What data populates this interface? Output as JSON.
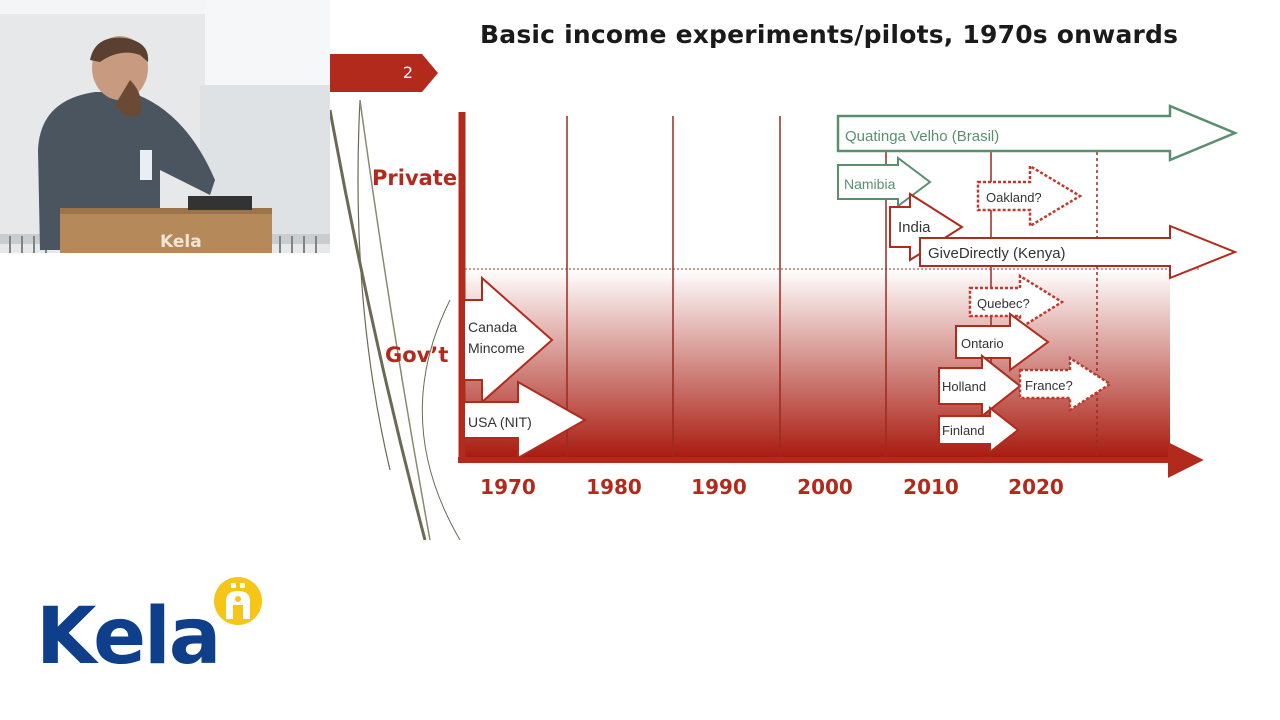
{
  "slide": {
    "title": "Basic income experiments/pilots, 1970s onwards",
    "page_number": "2",
    "rows": {
      "private": "Private",
      "government": "Gov’t"
    },
    "decades": [
      "1970",
      "1980",
      "1990",
      "2000",
      "2010",
      "2020"
    ],
    "experiments": {
      "quatinga": "Quatinga Velho (Brasil)",
      "namibia": "Namibia",
      "oakland": "Oakland?",
      "india": "India",
      "givedirectly": "GiveDirectly (Kenya)",
      "canada_line1": "Canada",
      "canada_line2": "Mincome",
      "usa": "USA (NIT)",
      "quebec": "Quebec?",
      "ontario": "Ontario",
      "holland": "Holland",
      "france": "France?",
      "finland": "Finland"
    },
    "colors": {
      "accent": "#b22a1c",
      "private_arrow": "#5a8f6e",
      "dashed": "#c0392b"
    }
  },
  "video": {
    "podium_logo": "Kela"
  },
  "logo": {
    "brand": "Kela",
    "icon": "kela-figure-icon"
  }
}
